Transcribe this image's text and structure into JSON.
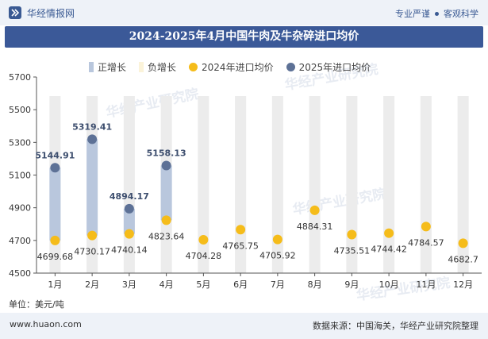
{
  "header": {
    "brand": "华经情报网",
    "slogan_left": "专业严谨",
    "slogan_right": "客观科学"
  },
  "title": "2024-2025年4月中国牛肉及牛杂碎进口均价",
  "legend": {
    "pos": "正增长",
    "neg": "负增长",
    "s2024": "2024年进口均价",
    "s2025": "2025年进口均价"
  },
  "unit": "单位：美元/吨",
  "footer": {
    "url": "www.huaon.com",
    "source": "数据来源：中国海关，华经产业研究院整理"
  },
  "watermark": "华经产业研究院",
  "colors": {
    "pos_bar": "#b9c7dd",
    "neg_bar": "#fbf3d9",
    "bg_bar": "#ececec",
    "s2024": "#f5bc1a",
    "s2025": "#5d7196",
    "label_2025": "#3d4e6e",
    "title_bg": "#3b5998"
  },
  "chart_data": {
    "type": "line",
    "title": "2024-2025年4月中国牛肉及牛杂碎进口均价",
    "categories": [
      "1月",
      "2月",
      "3月",
      "4月",
      "5月",
      "6月",
      "7月",
      "8月",
      "9月",
      "10月",
      "11月",
      "12月"
    ],
    "series": [
      {
        "name": "2024年进口均价",
        "values": [
          4699.68,
          4730.17,
          4740.14,
          4823.64,
          4704.28,
          4765.75,
          4705.92,
          4884.31,
          4735.51,
          4744.42,
          4784.57,
          4682.7
        ]
      },
      {
        "name": "2025年进口均价",
        "values": [
          5144.91,
          5319.41,
          4894.17,
          5158.13,
          null,
          null,
          null,
          null,
          null,
          null,
          null,
          null
        ]
      }
    ],
    "labels_2024": [
      "4699.68",
      "4730.17",
      "4740.14",
      "4823.64",
      "4704.28",
      "4765.75",
      "4705.92",
      "4884.31",
      "4735.51",
      "4744.42",
      "4784.57",
      "4682.7"
    ],
    "labels_2025": [
      "5144.91",
      "5319.41",
      "4894.17",
      "5158.13"
    ],
    "ylim": [
      4500,
      5700
    ],
    "yticks": [
      4500,
      4700,
      4900,
      5100,
      5300,
      5500,
      5700
    ],
    "ytick_labels": [
      "4500",
      "4700",
      "4900",
      "5100",
      "5300",
      "5500",
      "5700"
    ],
    "grid": false,
    "legend_position": "top"
  }
}
